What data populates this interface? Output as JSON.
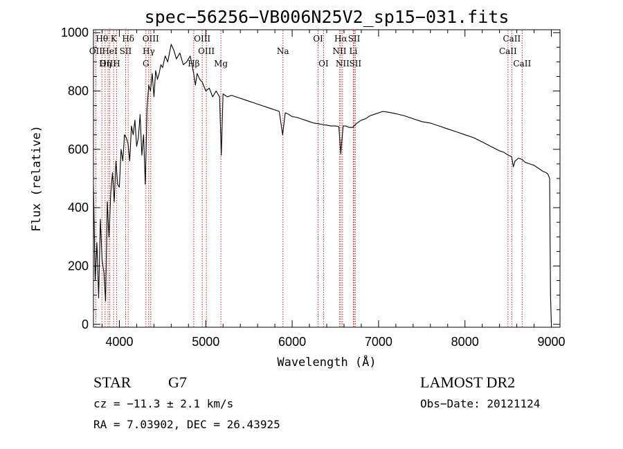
{
  "chart_data": {
    "type": "line",
    "title": "spec−56256−VB006N25V2_sp15−031.fits",
    "xlabel": "Wavelength (Å)",
    "ylabel": "Flux (relative)",
    "xlim": [
      3700,
      9100
    ],
    "ylim": [
      -10,
      1010
    ],
    "x_ticks": [
      4000,
      5000,
      6000,
      7000,
      8000,
      9000
    ],
    "y_ticks": [
      0,
      200,
      400,
      600,
      800,
      1000
    ],
    "series": [
      {
        "name": "flux",
        "x": [
          3700,
          3720,
          3740,
          3760,
          3780,
          3800,
          3820,
          3840,
          3860,
          3880,
          3900,
          3920,
          3940,
          3960,
          3980,
          4000,
          4020,
          4040,
          4060,
          4080,
          4100,
          4120,
          4140,
          4160,
          4180,
          4200,
          4220,
          4240,
          4260,
          4280,
          4300,
          4320,
          4340,
          4360,
          4380,
          4400,
          4420,
          4440,
          4460,
          4480,
          4500,
          4530,
          4560,
          4600,
          4630,
          4660,
          4700,
          4740,
          4780,
          4820,
          4860,
          4880,
          4900,
          4930,
          4960,
          5000,
          5040,
          5080,
          5120,
          5160,
          5180,
          5200,
          5250,
          5300,
          5350,
          5400,
          5450,
          5500,
          5550,
          5600,
          5650,
          5700,
          5750,
          5800,
          5850,
          5890,
          5920,
          5960,
          6000,
          6050,
          6100,
          6150,
          6200,
          6250,
          6300,
          6350,
          6400,
          6450,
          6500,
          6540,
          6563,
          6590,
          6620,
          6660,
          6700,
          6750,
          6800,
          6850,
          6900,
          6950,
          7000,
          7050,
          7100,
          7150,
          7200,
          7300,
          7400,
          7500,
          7600,
          7700,
          7800,
          7900,
          8000,
          8100,
          8200,
          8300,
          8400,
          8450,
          8500,
          8540,
          8560,
          8580,
          8620,
          8660,
          8700,
          8750,
          8800,
          8850,
          8900,
          8940,
          8960,
          8980,
          8990,
          9000
        ],
        "values": [
          480,
          150,
          280,
          90,
          360,
          220,
          180,
          80,
          420,
          300,
          450,
          520,
          420,
          560,
          480,
          470,
          600,
          560,
          650,
          640,
          620,
          560,
          680,
          650,
          700,
          610,
          640,
          720,
          580,
          650,
          480,
          740,
          820,
          800,
          860,
          780,
          870,
          840,
          860,
          890,
          880,
          920,
          900,
          960,
          940,
          910,
          930,
          890,
          900,
          920,
          860,
          820,
          860,
          840,
          830,
          800,
          810,
          780,
          800,
          780,
          580,
          790,
          780,
          785,
          780,
          775,
          770,
          765,
          760,
          755,
          750,
          745,
          740,
          735,
          730,
          650,
          725,
          720,
          712,
          710,
          705,
          700,
          695,
          690,
          688,
          685,
          683,
          680,
          680,
          678,
          585,
          680,
          680,
          675,
          675,
          690,
          700,
          705,
          715,
          720,
          725,
          730,
          728,
          725,
          722,
          715,
          705,
          695,
          690,
          680,
          670,
          660,
          650,
          640,
          625,
          610,
          595,
          590,
          580,
          575,
          540,
          560,
          570,
          565,
          555,
          550,
          545,
          535,
          525,
          520,
          515,
          500,
          100,
          0
        ]
      }
    ],
    "line_ids": [
      {
        "label": "Hθ",
        "x": 3798,
        "row": 1
      },
      {
        "label": "K",
        "x": 3934,
        "row": 1
      },
      {
        "label": "Hδ",
        "x": 4102,
        "row": 1
      },
      {
        "label": "OIII",
        "x": 4363,
        "row": 1
      },
      {
        "label": "OIII",
        "x": 4959,
        "row": 1
      },
      {
        "label": "OI",
        "x": 6300,
        "row": 1
      },
      {
        "label": "Hα",
        "x": 6563,
        "row": 1
      },
      {
        "label": "SII",
        "x": 6717,
        "row": 1
      },
      {
        "label": "CaII",
        "x": 8542,
        "row": 1
      },
      {
        "label": "OII",
        "x": 3727,
        "row": 2
      },
      {
        "label": "HeI",
        "x": 3889,
        "row": 2
      },
      {
        "label": "SII",
        "x": 4072,
        "row": 2
      },
      {
        "label": "Hγ",
        "x": 4340,
        "row": 2
      },
      {
        "label": "OIII",
        "x": 5007,
        "row": 2
      },
      {
        "label": "Na",
        "x": 5893,
        "row": 2
      },
      {
        "label": "NII",
        "x": 6548,
        "row": 2
      },
      {
        "label": "Li",
        "x": 6708,
        "row": 2
      },
      {
        "label": "CaII",
        "x": 8498,
        "row": 2
      },
      {
        "label": "OIII",
        "x": 3869,
        "row": 3
      },
      {
        "label": "Hη",
        "x": 3835,
        "row": 3
      },
      {
        "label": "H",
        "x": 3968,
        "row": 3
      },
      {
        "label": "G",
        "x": 4307,
        "row": 3
      },
      {
        "label": "Hβ",
        "x": 4861,
        "row": 3
      },
      {
        "label": "Mg",
        "x": 5175,
        "row": 3
      },
      {
        "label": "OI",
        "x": 6363,
        "row": 3
      },
      {
        "label": "NII",
        "x": 6583,
        "row": 3
      },
      {
        "label": "SII",
        "x": 6731,
        "row": 3
      },
      {
        "label": "CaII",
        "x": 8662,
        "row": 3
      }
    ]
  },
  "info": {
    "class_label": "STAR",
    "subclass": "G7",
    "survey": "LAMOST DR2",
    "redshift": "cz = −11.3 ± 2.1 km/s",
    "obs_date": "Obs−Date: 20121124",
    "coords": "RA =   7.03902, DEC =  26.43925"
  },
  "colors": {
    "line_marker": "#cc2222",
    "spectrum": "#000000",
    "axis": "#000000"
  }
}
